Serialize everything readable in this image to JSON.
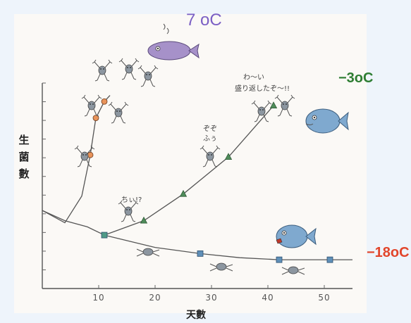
{
  "chart_data": {
    "type": "line",
    "xlabel": "天數",
    "ylabel": "生菌數",
    "xticks": [
      10,
      20,
      30,
      40,
      50
    ],
    "xlim": [
      0,
      55
    ],
    "ylim": [
      0,
      10
    ],
    "series": [
      {
        "name": "7 oC",
        "color": "#e8935a",
        "marker": "circle",
        "label_text": "7 oC",
        "label_color": "#7b5fc4",
        "points": [
          [
            0,
            3.8
          ],
          [
            4,
            3.2
          ],
          [
            7,
            4.5
          ],
          [
            8.5,
            6.5
          ],
          [
            9.5,
            8.3
          ],
          [
            11,
            9.1
          ],
          [
            12,
            9.4
          ]
        ],
        "markers_at": [
          [
            8.5,
            6.5
          ],
          [
            9.5,
            8.3
          ],
          [
            11,
            9.1
          ]
        ]
      },
      {
        "name": "-3oC",
        "color": "#4f8c5a",
        "marker": "triangle",
        "label_text": "−3oC",
        "label_color": "#2e7d32",
        "points": [
          [
            11,
            2.6
          ],
          [
            18,
            3.3
          ],
          [
            25,
            4.6
          ],
          [
            33,
            6.4
          ],
          [
            41,
            8.9
          ]
        ],
        "markers_at": [
          [
            18,
            3.3
          ],
          [
            25,
            4.6
          ],
          [
            33,
            6.4
          ],
          [
            41,
            8.9
          ]
        ]
      },
      {
        "name": "-18oC",
        "color": "#5f8fb8",
        "marker": "square",
        "label_text": "−18oC",
        "label_color": "#e2452b",
        "points": [
          [
            11,
            2.6
          ],
          [
            20,
            2.0
          ],
          [
            28,
            1.7
          ],
          [
            35,
            1.5
          ],
          [
            42,
            1.4
          ],
          [
            51,
            1.4
          ],
          [
            55,
            1.4
          ]
        ],
        "markers_at": [
          [
            28,
            1.7
          ],
          [
            42,
            1.4
          ],
          [
            51,
            1.4
          ]
        ]
      }
    ],
    "shared_segment": [
      [
        0,
        3.8
      ],
      [
        4,
        3.3
      ],
      [
        8,
        3.0
      ],
      [
        11,
        2.6
      ]
    ]
  },
  "annotations": {
    "fish_speech_top": "わ〜い",
    "fish_speech_bottom": "盛り返したぞ〜!!",
    "bacteria_note_1": "ぞぞ",
    "bacteria_note_2": "ふぅ",
    "bacteria_note_3": "ちぃ!?"
  }
}
